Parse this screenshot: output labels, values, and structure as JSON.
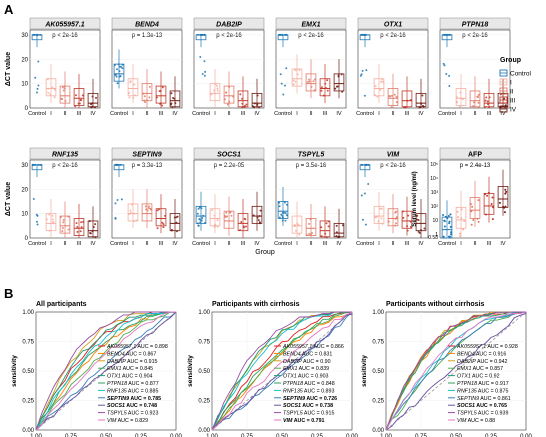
{
  "figure": {
    "panel_a_label": "A",
    "panel_b_label": "B"
  },
  "colors": {
    "Control": "#1f77b4",
    "I": "#f4b0a3",
    "II": "#e07b6a",
    "III": "#c0392b",
    "IV": "#6e1a12",
    "roc_palette": [
      "#e41a1c",
      "#ff7f00",
      "#d4a017",
      "#4daf4a",
      "#1b9e77",
      "#2ca25f",
      "#17becf",
      "#377eb8",
      "#6a51a3",
      "#984ea3",
      "#e377c2",
      "#f781bf"
    ]
  },
  "panel_a": {
    "y_label_dct": "ΔCT value",
    "x_label": "Group",
    "categories": [
      "Control",
      "I",
      "II",
      "III",
      "IV"
    ],
    "legend": {
      "title": "Group",
      "items": [
        "Control",
        "I",
        "II",
        "III",
        "IV"
      ]
    },
    "genes": [
      {
        "name": "AK055957.1",
        "pval": "p < 2e-16",
        "medians": [
          30,
          8,
          5,
          4,
          2
        ]
      },
      {
        "name": "BEND4",
        "pval": "p = 1.3e-13",
        "medians": [
          14,
          8,
          6,
          5,
          3
        ]
      },
      {
        "name": "DAB2IP",
        "pval": "p < 2e-16",
        "medians": [
          30,
          6,
          5,
          3,
          2
        ]
      },
      {
        "name": "EMX1",
        "pval": "p < 2e-16",
        "medians": [
          30,
          12,
          10,
          8,
          10
        ]
      },
      {
        "name": "OTX1",
        "pval": "p < 2e-16",
        "medians": [
          30,
          8,
          4,
          3,
          2
        ]
      },
      {
        "name": "PTPN18",
        "pval": "p < 2e-16",
        "medians": [
          30,
          4,
          3,
          2,
          2
        ]
      },
      {
        "name": "RNF135",
        "pval": "p < 2e-16",
        "medians": [
          30,
          6,
          5,
          4,
          3
        ]
      },
      {
        "name": "SEPTIN9",
        "pval": "p = 3.3e-13",
        "medians": [
          30,
          10,
          10,
          8,
          6
        ]
      },
      {
        "name": "SOCS1",
        "pval": "p = 2.2e-05",
        "medians": [
          9,
          8,
          7,
          6,
          9
        ]
      },
      {
        "name": "TSPYL5",
        "pval": "p = 3.5e-16",
        "medians": [
          11,
          5,
          4,
          3,
          2
        ]
      },
      {
        "name": "VIM",
        "pval": "p < 2e-16",
        "medians": [
          30,
          9,
          8,
          7,
          6
        ]
      }
    ],
    "afp": {
      "name": "AFP",
      "pval": "p = 2.4e-13",
      "y_label": "Serum level (ng/ml)",
      "ticks": [
        "10⁵",
        "10⁴",
        "10³",
        "10²",
        "10",
        "1",
        "0.58"
      ],
      "medians_log10": [
        0.3,
        1.0,
        1.7,
        2.0,
        2.5
      ]
    }
  },
  "chart_data": [
    {
      "type": "line",
      "title": "All participants",
      "xlabel": "specificity",
      "ylabel": "sensitivity",
      "x_ticks": [
        "1.00",
        "0.75",
        "0.50",
        "0.25",
        "0.00"
      ],
      "y_ticks": [
        "1.00",
        "0.75",
        "0.50",
        "0.25",
        "0.00"
      ],
      "series": [
        {
          "name": "AK055957.1",
          "auc": "0.898"
        },
        {
          "name": "BEND4",
          "auc": "0.867"
        },
        {
          "name": "DAB2IP",
          "auc": "0.915"
        },
        {
          "name": "EMX1",
          "auc": "0.845"
        },
        {
          "name": "OTX1",
          "auc": "0.904"
        },
        {
          "name": "PTPN18",
          "auc": "0.877"
        },
        {
          "name": "RNF135",
          "auc": "0.885"
        },
        {
          "name": "SEPTIN9",
          "auc": "0.785",
          "bold": true
        },
        {
          "name": "SOCS1",
          "auc": "0.748",
          "bold": true
        },
        {
          "name": "TSPYL5",
          "auc": "0.923"
        },
        {
          "name": "VIM",
          "auc": "0.829"
        }
      ]
    },
    {
      "type": "line",
      "title": "Participants with cirrhosis",
      "xlabel": "specificity",
      "ylabel": "sensitivity",
      "x_ticks": [
        "1.00",
        "0.75",
        "0.50",
        "0.25",
        "0.00"
      ],
      "y_ticks": [
        "1.00",
        "0.75",
        "0.50",
        "0.25",
        "0.00"
      ],
      "series": [
        {
          "name": "AK055957.1",
          "auc": "0.866"
        },
        {
          "name": "BEND4",
          "auc": "0.831"
        },
        {
          "name": "DAB2IP",
          "auc": "0.90"
        },
        {
          "name": "EMX1",
          "auc": "0.839"
        },
        {
          "name": "OTX1",
          "auc": "0.903"
        },
        {
          "name": "PTPN18",
          "auc": "0.848"
        },
        {
          "name": "RNF135",
          "auc": "0.893"
        },
        {
          "name": "SEPTIN9",
          "auc": "0.726",
          "bold": true
        },
        {
          "name": "SOCS1",
          "auc": "0.738",
          "bold": true
        },
        {
          "name": "TSPYL5",
          "auc": "0.915"
        },
        {
          "name": "VIM",
          "auc": "0.791",
          "bold": true
        }
      ]
    },
    {
      "type": "line",
      "title": "Participants without cirrhosis",
      "xlabel": "specificity",
      "ylabel": "sensitivity",
      "x_ticks": [
        "1.00",
        "0.75",
        "0.50",
        "0.25",
        "0.00"
      ],
      "y_ticks": [
        "1.00",
        "0.75",
        "0.50",
        "0.25",
        "0.00"
      ],
      "series": [
        {
          "name": "AK055957.1",
          "auc": "0.928"
        },
        {
          "name": "BEND4",
          "auc": "0.916"
        },
        {
          "name": "DAB2IP",
          "auc": "0.942"
        },
        {
          "name": "EMX1",
          "auc": "0.857"
        },
        {
          "name": "OTX1",
          "auc": "0.92"
        },
        {
          "name": "PTPN18",
          "auc": "0.917"
        },
        {
          "name": "RNF135",
          "auc": "0.875"
        },
        {
          "name": "SEPTIN9",
          "auc": "0.861"
        },
        {
          "name": "SOCS1",
          "auc": "0.765",
          "bold": true
        },
        {
          "name": "TSPYL5",
          "auc": "0.939"
        },
        {
          "name": "VIM",
          "auc": "0.88"
        }
      ]
    }
  ]
}
